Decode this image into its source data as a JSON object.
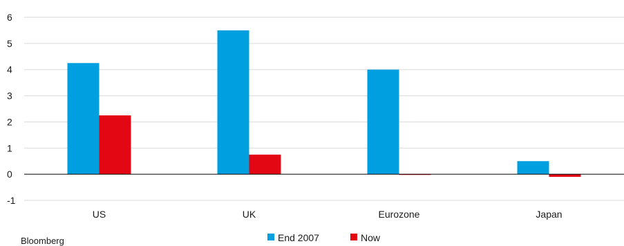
{
  "chart_data": {
    "type": "bar",
    "title": "",
    "xlabel": "",
    "ylabel": "",
    "categories": [
      "US",
      "UK",
      "Eurozone",
      "Japan"
    ],
    "series": [
      {
        "name": "End 2007",
        "color": "#00a0e0",
        "values": [
          4.25,
          5.5,
          4.0,
          0.5
        ]
      },
      {
        "name": "Now",
        "color": "#e30613",
        "values": [
          2.25,
          0.75,
          0.0,
          -0.1
        ]
      }
    ],
    "ylim": [
      -1,
      6
    ],
    "yticks": [
      6,
      5,
      4,
      3,
      2,
      1,
      0,
      -1
    ],
    "grid": true,
    "legend_position": "bottom-center"
  },
  "source": "Bloomberg"
}
